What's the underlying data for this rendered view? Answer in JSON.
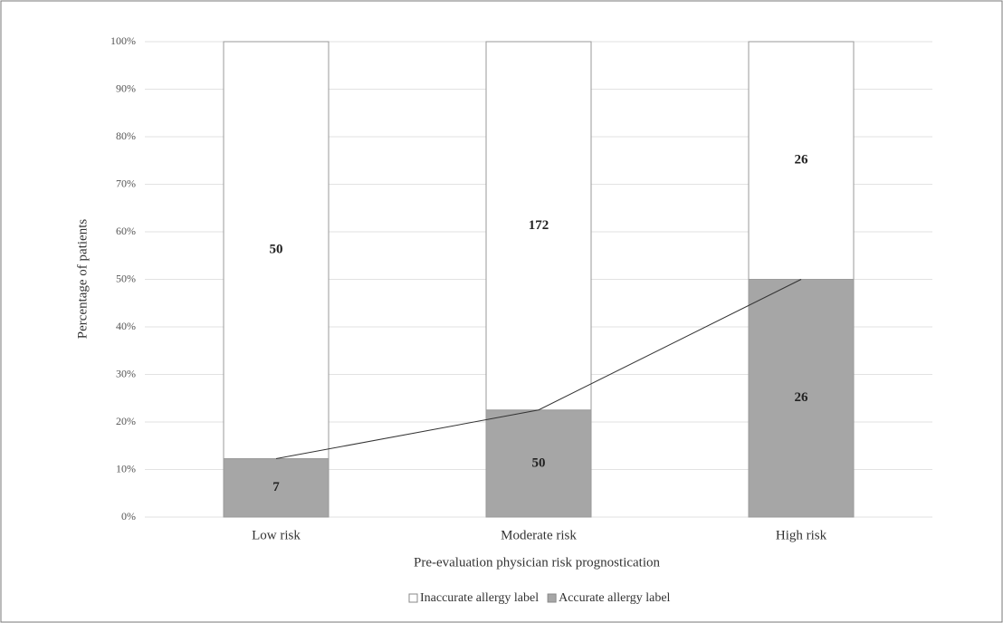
{
  "chart_data": {
    "type": "bar",
    "stacking": "percent",
    "x_label": "Pre-evaluation physician risk prognostication",
    "y_label": "Percentage of patients",
    "categories": [
      "Low risk",
      "Moderate risk",
      "High risk"
    ],
    "series": [
      {
        "name": "Accurate allergy label",
        "color": "#a6a6a6",
        "values": [
          7,
          50,
          26
        ]
      },
      {
        "name": "Inaccurate allergy label",
        "color": "#ffffff",
        "values": [
          50,
          172,
          26
        ]
      }
    ],
    "trend_line": true,
    "ylim": [
      0,
      100
    ],
    "yticks": [
      {
        "value": 0,
        "label": "0%"
      },
      {
        "value": 10,
        "label": "10%"
      },
      {
        "value": 20,
        "label": "20%"
      },
      {
        "value": 30,
        "label": "30%"
      },
      {
        "value": 40,
        "label": "40%"
      },
      {
        "value": 50,
        "label": "50%"
      },
      {
        "value": 60,
        "label": "60%"
      },
      {
        "value": 70,
        "label": "70%"
      },
      {
        "value": 80,
        "label": "80%"
      },
      {
        "value": 90,
        "label": "90%"
      },
      {
        "value": 100,
        "label": "100%"
      }
    ],
    "grid": true,
    "legend": "bottom"
  }
}
